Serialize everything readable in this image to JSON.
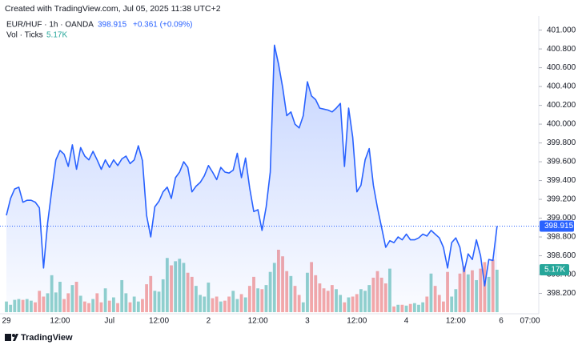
{
  "chart_data": {
    "type": "area",
    "header": "Created with TradingView.com, Jul 05, 2025 11:38 UTC+2",
    "change": "+0.361 (+0.09%)",
    "footer": "TradingView",
    "categories": [
      "29",
      null,
      null,
      null,
      null,
      null,
      null,
      null,
      null,
      null,
      null,
      null,
      null,
      "12:00",
      null,
      null,
      null,
      null,
      null,
      null,
      null,
      null,
      null,
      null,
      null,
      "Jul",
      null,
      null,
      null,
      null,
      null,
      null,
      null,
      null,
      null,
      null,
      null,
      "12:00",
      null,
      null,
      null,
      null,
      null,
      null,
      null,
      null,
      null,
      null,
      null,
      "2",
      null,
      null,
      null,
      null,
      null,
      null,
      null,
      null,
      null,
      null,
      null,
      "12:00",
      null,
      null,
      null,
      null,
      null,
      null,
      null,
      null,
      null,
      null,
      null,
      "3",
      null,
      null,
      null,
      null,
      null,
      null,
      null,
      null,
      null,
      null,
      null,
      "12:00",
      null,
      null,
      null,
      null,
      null,
      null,
      null,
      null,
      null,
      null,
      null,
      "4",
      null,
      null,
      null,
      null,
      null,
      null,
      null,
      null,
      null,
      null,
      null,
      "12:00",
      null,
      null,
      null,
      null,
      null,
      null,
      null,
      null,
      null,
      null,
      "6",
      null,
      null,
      null,
      null,
      null,
      null,
      "07:00"
    ],
    "series": [
      {
        "name": "EUR/HUF · 1h · OANDA",
        "color": "#2962ff",
        "values": [
          399.03,
          399.21,
          399.31,
          399.33,
          399.17,
          399.19,
          399.19,
          399.17,
          399.11,
          398.47,
          398.95,
          399.3,
          399.62,
          399.72,
          399.68,
          399.55,
          399.78,
          399.52,
          399.75,
          399.66,
          399.62,
          399.71,
          399.62,
          399.52,
          399.62,
          399.54,
          399.62,
          399.56,
          399.63,
          399.66,
          399.58,
          399.62,
          399.77,
          399.61,
          399.03,
          398.8,
          399.12,
          399.18,
          399.28,
          399.33,
          399.21,
          399.43,
          399.49,
          399.6,
          399.54,
          399.28,
          399.34,
          399.38,
          399.45,
          399.56,
          399.49,
          399.41,
          399.54,
          399.49,
          399.48,
          399.51,
          399.69,
          399.43,
          399.64,
          399.32,
          399.07,
          399.09,
          398.87,
          399.12,
          399.49,
          400.84,
          400.64,
          400.39,
          400.09,
          400.13,
          400.0,
          399.96,
          400.09,
          400.45,
          400.3,
          400.26,
          400.17,
          400.16,
          400.15,
          400.13,
          400.17,
          400.22,
          399.55,
          400.17,
          399.86,
          399.28,
          399.35,
          399.62,
          399.74,
          399.35,
          399.11,
          398.9,
          398.69,
          398.76,
          398.74,
          398.8,
          398.77,
          398.83,
          398.77,
          398.77,
          398.79,
          398.83,
          398.81,
          398.87,
          398.83,
          398.79,
          398.69,
          398.47,
          398.74,
          398.79,
          398.69,
          398.43,
          398.62,
          398.56,
          398.77,
          398.6,
          398.28,
          398.56,
          398.55,
          398.915,
          null,
          null,
          null,
          null,
          null,
          null,
          null,
          null
        ]
      },
      {
        "name": "Vol · Ticks",
        "type": "bar",
        "up_color": "rgba(38,166,154,0.5)",
        "down_color": "rgba(239,83,80,0.5)",
        "label_color": "#26a69a",
        "values": [
          1300,
          900,
          1500,
          1600,
          1500,
          1600,
          1400,
          1200,
          2600,
          1900,
          2300,
          4500,
          2400,
          3700,
          1600,
          2300,
          3300,
          3700,
          2000,
          1300,
          1100,
          1600,
          2300,
          1200,
          2900,
          1400,
          1800,
          1100,
          3900,
          2300,
          1200,
          1900,
          1300,
          1600,
          3400,
          4400,
          2600,
          2500,
          4000,
          6600,
          5700,
          6200,
          6500,
          6000,
          4800,
          4300,
          3200,
          2100,
          1900,
          3600,
          1700,
          1900,
          1300,
          1400,
          1900,
          2600,
          1600,
          2200,
          1800,
          3200,
          4300,
          2900,
          2800,
          3300,
          4900,
          6000,
          7600,
          6800,
          5000,
          4400,
          3200,
          2100,
          1200,
          4800,
          6100,
          4500,
          3500,
          2900,
          2600,
          3300,
          2800,
          2100,
          1200,
          1800,
          1900,
          2200,
          2800,
          2600,
          3300,
          4200,
          5000,
          4200,
          3500,
          5300,
          700,
          900,
          900,
          800,
          1000,
          1100,
          900,
          1200,
          1900,
          4700,
          3200,
          2100,
          1300,
          4900,
          1900,
          2800,
          4700,
          5600,
          4600,
          5100,
          3900,
          5300,
          6100,
          4300,
          6400,
          5170,
          null,
          null,
          null,
          null,
          null,
          null,
          null,
          null
        ],
        "value_labels": [
          null,
          null,
          null,
          null,
          null,
          null,
          null,
          null,
          null,
          null,
          null,
          null,
          null,
          null,
          null,
          null,
          null,
          null,
          null,
          null,
          null,
          null,
          null,
          null,
          null,
          null,
          null,
          null,
          null,
          null,
          null,
          null,
          null,
          null,
          null,
          null,
          null,
          null,
          null,
          null,
          null,
          null,
          null,
          null,
          null,
          null,
          null,
          null,
          null,
          null,
          null,
          null,
          null,
          null,
          null,
          null,
          null,
          null,
          null,
          null,
          null,
          null,
          null,
          null,
          null,
          null,
          null,
          null,
          null,
          null,
          null,
          null,
          null,
          null,
          null,
          null,
          null,
          null,
          null,
          null,
          null,
          null,
          null,
          null,
          null,
          null,
          null,
          null,
          null,
          null,
          null,
          null,
          null,
          null,
          null,
          null,
          null,
          null,
          null,
          null,
          null,
          null,
          null,
          null,
          null,
          null,
          null,
          null,
          null,
          null,
          null,
          null,
          null,
          null,
          null,
          null,
          null,
          null,
          null,
          "5.17K",
          null,
          null,
          null,
          null,
          null,
          null,
          null,
          null
        ]
      }
    ],
    "ylim": [
      398.0,
      401.15
    ],
    "yticks": [
      {
        "value": 398.2,
        "label": "398.200"
      },
      {
        "value": 398.4,
        "label": "398.400"
      },
      {
        "value": 398.6,
        "label": "398.600"
      },
      {
        "value": 398.8,
        "label": "398.800"
      },
      {
        "value": 399,
        "label": "399.000"
      },
      {
        "value": 399.2,
        "label": "399.200"
      },
      {
        "value": 399.4,
        "label": "399.400"
      },
      {
        "value": 399.6,
        "label": "399.600"
      },
      {
        "value": 399.8,
        "label": "399.800"
      },
      {
        "value": 400,
        "label": "400.000"
      },
      {
        "value": 400.2,
        "label": "400.200"
      },
      {
        "value": 400.4,
        "label": "400.400"
      },
      {
        "value": 400.6,
        "label": "400.600"
      },
      {
        "value": 400.8,
        "label": "400.800"
      },
      {
        "value": 401,
        "label": "401.000"
      }
    ],
    "grid": false,
    "last_price_line": true
  }
}
